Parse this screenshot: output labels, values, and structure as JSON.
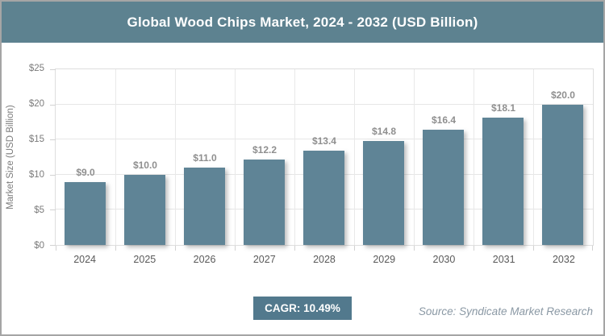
{
  "header": {
    "title": "Global Wood Chips Market, 2024 - 2032 (USD Billion)"
  },
  "chart_data": {
    "type": "bar",
    "title": "Global Wood Chips Market, 2024 - 2032 (USD Billion)",
    "categories": [
      "2024",
      "2025",
      "2026",
      "2027",
      "2028",
      "2029",
      "2030",
      "2031",
      "2032"
    ],
    "values": [
      9.0,
      10.0,
      11.0,
      12.2,
      13.4,
      14.8,
      16.4,
      18.1,
      20.0
    ],
    "value_labels": [
      "$9.0",
      "$10.0",
      "$11.0",
      "$12.2",
      "$13.4",
      "$14.8",
      "$16.4",
      "$18.1",
      "$20.0"
    ],
    "xlabel": "",
    "ylabel": "Market Size (USD Billion)",
    "ylim": [
      0,
      25
    ],
    "ytick_labels": [
      "$0",
      "$5",
      "$10",
      "$15",
      "$20",
      "$25"
    ],
    "grid": true,
    "legend": false
  },
  "footer": {
    "cagr_label": "CAGR: 10.49%",
    "source": "Source: Syndicate Market Research"
  },
  "colors": {
    "header_bg": "#5D8290",
    "bar": "#5F8496",
    "badge_bg": "#52798D",
    "grid": "#E6E6E6",
    "axis_text": "#7B7B7B",
    "bar_label_text": "#8F8F8F",
    "year_text": "#595959",
    "source_text": "#8A98A4",
    "frame_border": "#A5A5A5"
  }
}
